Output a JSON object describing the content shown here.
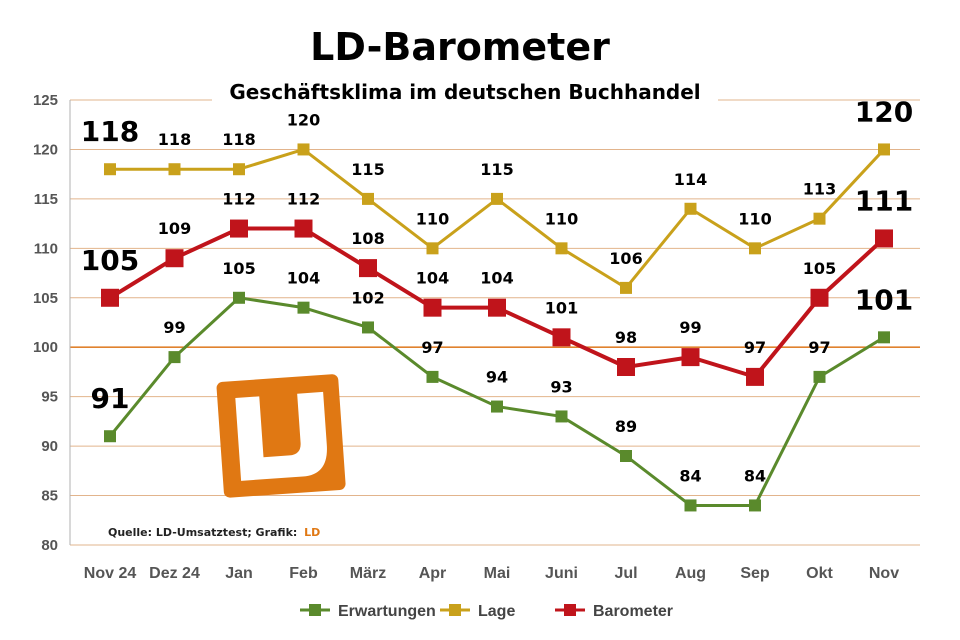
{
  "chart_data": {
    "type": "line",
    "title": "LD-Barometer",
    "subtitle": "Geschäftsklima im deutschen Buchhandel",
    "xlabel": "",
    "ylabel": "",
    "ylim": [
      80,
      125
    ],
    "yticks": [
      80,
      85,
      90,
      95,
      100,
      105,
      110,
      115,
      120,
      125
    ],
    "reference_line": 100,
    "grid": true,
    "legend_position": "bottom-center",
    "categories": [
      "Nov 24",
      "Dez 24",
      "Jan",
      "Feb",
      "März",
      "Apr",
      "Mai",
      "Juni",
      "Jul",
      "Aug",
      "Sep",
      "Okt",
      "Nov"
    ],
    "series": [
      {
        "name": "Lage",
        "color": "#c9a11b",
        "values": [
          118,
          118,
          118,
          120,
          115,
          110,
          115,
          110,
          106,
          114,
          110,
          113,
          120
        ]
      },
      {
        "name": "Barometer",
        "color": "#c0141b",
        "values": [
          105,
          109,
          112,
          112,
          108,
          104,
          104,
          101,
          98,
          99,
          97,
          105,
          111
        ]
      },
      {
        "name": "Erwartungen",
        "color": "#5a8a2c",
        "values": [
          91,
          99,
          105,
          104,
          102,
          97,
          94,
          93,
          89,
          84,
          84,
          97,
          101
        ]
      }
    ],
    "legend_order": [
      "Erwartungen",
      "Lage",
      "Barometer"
    ],
    "source_note": "Quelle: LD-Umsatztest; Grafik:",
    "source_brand": "LD",
    "logo_text": "LD",
    "colors": {
      "grid": "#e2b48c",
      "reference": "#e0822e",
      "brand": "#e07813"
    }
  }
}
